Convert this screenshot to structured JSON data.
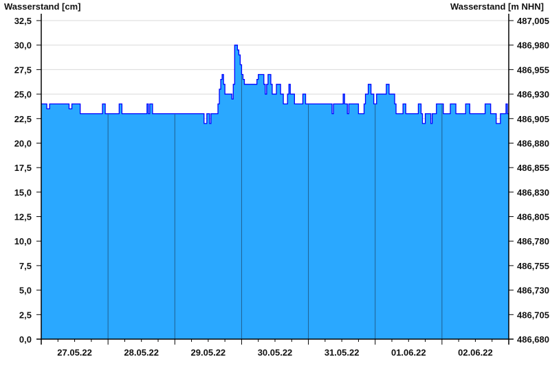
{
  "chart_data": {
    "type": "area",
    "title": "",
    "ylabel_left": "Wasserstand [cm]",
    "ylabel_right": "Wasserstand [m NHN]",
    "ylim": [
      0,
      32.5
    ],
    "ylim_right": [
      486.68,
      487.005
    ],
    "xlim": [
      "27.05.22 00:00",
      "03.06.22 00:00"
    ],
    "grid": true,
    "step": true,
    "colors": {
      "fill": "#2aa8ff",
      "line": "#0000ff",
      "day_separator": "#1f5f8f",
      "grid": "#d9d9d9"
    },
    "y_ticks_left": [
      "0,0",
      "2,5",
      "5,0",
      "7,5",
      "10,0",
      "12,5",
      "15,0",
      "17,5",
      "20,0",
      "22,5",
      "25,0",
      "27,5",
      "30,0",
      "32,5"
    ],
    "y_ticks_right": [
      "486,680",
      "486,705",
      "486,730",
      "486,755",
      "486,780",
      "486,805",
      "486,830",
      "486,855",
      "486,880",
      "486,905",
      "486,930",
      "486,955",
      "486,980",
      "487,005"
    ],
    "x_ticks": [
      "27.05.22",
      "28.05.22",
      "29.05.22",
      "30.05.22",
      "31.05.22",
      "01.06.22",
      "02.06.22"
    ],
    "points": [
      [
        "27.05.22 00:00",
        24
      ],
      [
        "27.05.22 02:00",
        23.5
      ],
      [
        "27.05.22 03:00",
        24
      ],
      [
        "27.05.22 10:00",
        23.5
      ],
      [
        "27.05.22 11:00",
        24
      ],
      [
        "27.05.22 14:00",
        23
      ],
      [
        "27.05.22 22:00",
        24
      ],
      [
        "27.05.22 23:00",
        23
      ],
      [
        "28.05.22 04:00",
        24
      ],
      [
        "28.05.22 05:00",
        23
      ],
      [
        "28.05.22 14:00",
        24
      ],
      [
        "28.05.22 14:30",
        23
      ],
      [
        "28.05.22 15:00",
        24
      ],
      [
        "28.05.22 16:00",
        23
      ],
      [
        "29.05.22 10:30",
        22
      ],
      [
        "29.05.22 11:30",
        23
      ],
      [
        "29.05.22 12:30",
        22
      ],
      [
        "29.05.22 13:00",
        23
      ],
      [
        "29.05.22 15:30",
        24
      ],
      [
        "29.05.22 16:00",
        25.5
      ],
      [
        "29.05.22 16:30",
        26.5
      ],
      [
        "29.05.22 17:00",
        27
      ],
      [
        "29.05.22 17:30",
        26
      ],
      [
        "29.05.22 18:00",
        25
      ],
      [
        "29.05.22 20:30",
        24.5
      ],
      [
        "29.05.22 21:00",
        26
      ],
      [
        "29.05.22 21:30",
        30
      ],
      [
        "29.05.22 22:30",
        29.5
      ],
      [
        "29.05.22 23:00",
        29
      ],
      [
        "29.05.22 23:30",
        28
      ],
      [
        "30.05.22 00:00",
        27
      ],
      [
        "30.05.22 00:30",
        26.5
      ],
      [
        "30.05.22 01:00",
        26
      ],
      [
        "30.05.22 05:30",
        26.5
      ],
      [
        "30.05.22 06:00",
        27
      ],
      [
        "30.05.22 08:00",
        26
      ],
      [
        "30.05.22 08:30",
        25
      ],
      [
        "30.05.22 09:00",
        26
      ],
      [
        "30.05.22 09:30",
        27
      ],
      [
        "30.05.22 10:30",
        26
      ],
      [
        "30.05.22 11:00",
        25
      ],
      [
        "30.05.22 12:30",
        26
      ],
      [
        "30.05.22 14:00",
        25
      ],
      [
        "30.05.22 15:00",
        24
      ],
      [
        "30.05.22 16:30",
        25
      ],
      [
        "30.05.22 17:00",
        26
      ],
      [
        "30.05.22 17:30",
        25
      ],
      [
        "30.05.22 19:00",
        24
      ],
      [
        "30.05.22 22:00",
        25
      ],
      [
        "30.05.22 23:00",
        24
      ],
      [
        "31.05.22 08:30",
        23
      ],
      [
        "31.05.22 09:00",
        24
      ],
      [
        "31.05.22 12:30",
        25
      ],
      [
        "31.05.22 13:00",
        24
      ],
      [
        "31.05.22 14:00",
        23
      ],
      [
        "31.05.22 14:30",
        24
      ],
      [
        "31.05.22 18:00",
        23
      ],
      [
        "31.05.22 20:00",
        24
      ],
      [
        "31.05.22 20:30",
        25
      ],
      [
        "31.05.22 21:30",
        26
      ],
      [
        "31.05.22 22:30",
        25
      ],
      [
        "31.05.22 23:30",
        24
      ],
      [
        "01.06.22 00:30",
        25
      ],
      [
        "01.06.22 04:00",
        26
      ],
      [
        "01.06.22 05:00",
        25
      ],
      [
        "01.06.22 07:00",
        24
      ],
      [
        "01.06.22 07:30",
        23
      ],
      [
        "01.06.22 10:00",
        24
      ],
      [
        "01.06.22 11:00",
        23
      ],
      [
        "01.06.22 15:30",
        24
      ],
      [
        "01.06.22 16:30",
        23
      ],
      [
        "01.06.22 17:00",
        22
      ],
      [
        "01.06.22 18:00",
        23
      ],
      [
        "01.06.22 20:00",
        22
      ],
      [
        "01.06.22 20:30",
        23
      ],
      [
        "01.06.22 22:00",
        24
      ],
      [
        "02.06.22 00:30",
        23
      ],
      [
        "02.06.22 03:00",
        24
      ],
      [
        "02.06.22 05:00",
        23
      ],
      [
        "02.06.22 08:30",
        24
      ],
      [
        "02.06.22 10:00",
        23
      ],
      [
        "02.06.22 15:30",
        24
      ],
      [
        "02.06.22 17:30",
        23
      ],
      [
        "02.06.22 19:30",
        22
      ],
      [
        "02.06.22 21:00",
        23
      ],
      [
        "02.06.22 23:00",
        24
      ],
      [
        "02.06.22 23:30",
        23
      ]
    ]
  }
}
